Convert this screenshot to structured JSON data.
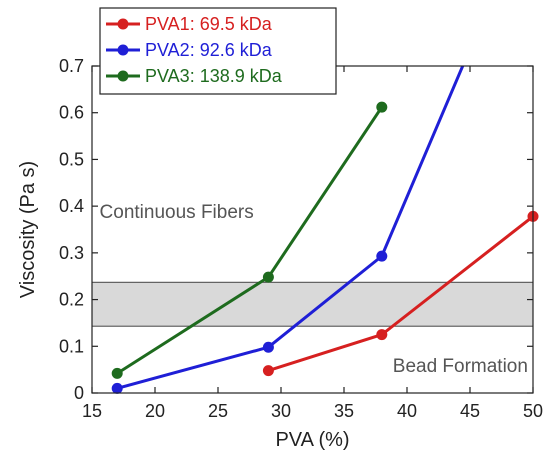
{
  "chart_data": {
    "type": "line",
    "xlabel": "PVA (%)",
    "ylabel": "Viscosity (Pa s)",
    "xlim": [
      15,
      50
    ],
    "ylim": [
      0,
      0.7
    ],
    "xticks": [
      15,
      20,
      25,
      30,
      35,
      40,
      45,
      50
    ],
    "yticks": [
      0,
      0.1,
      0.2,
      0.3,
      0.4,
      0.5,
      0.6,
      0.7
    ],
    "xtick_labels": [
      "15",
      "20",
      "25",
      "30",
      "35",
      "40",
      "45",
      "50"
    ],
    "ytick_labels": [
      "0",
      "0.1",
      "0.2",
      "0.3",
      "0.4",
      "0.5",
      "0.6",
      "0.7"
    ],
    "grid": false,
    "legend_position": "top-left",
    "series": [
      {
        "name": "PVA1: 69.5 kDa",
        "color": "#d62020",
        "x": [
          29,
          38,
          50
        ],
        "y": [
          0.048,
          0.125,
          0.378
        ]
      },
      {
        "name": "PVA2: 92.6 kDa",
        "color": "#1f1fd6",
        "x": [
          17,
          29,
          38,
          44.5
        ],
        "y": [
          0.01,
          0.098,
          0.293,
          0.705
        ],
        "markers": [
          true,
          true,
          true,
          false
        ]
      },
      {
        "name": "PVA3: 138.9 kDa",
        "color": "#1e6b1e",
        "x": [
          17,
          29,
          38
        ],
        "y": [
          0.042,
          0.248,
          0.612
        ]
      }
    ],
    "band": {
      "y0": 0.143,
      "y1": 0.237
    },
    "annotations": [
      {
        "text": "Continuous Fibers",
        "x": 15.6,
        "y": 0.375
      },
      {
        "text": "Bead Formation",
        "x": 49.6,
        "y": 0.045
      }
    ]
  }
}
